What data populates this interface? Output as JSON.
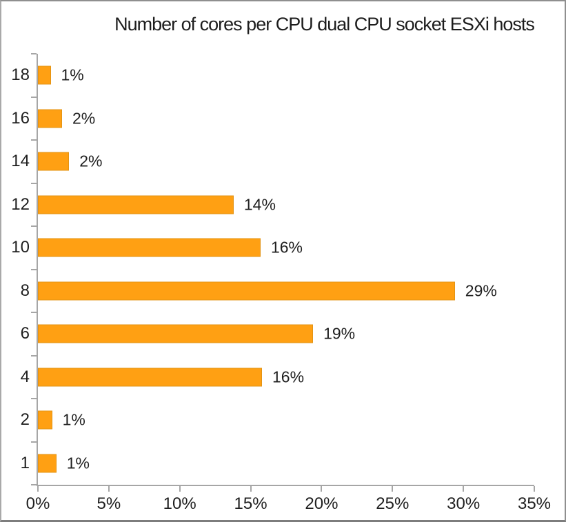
{
  "title": "Number of cores per CPU dual CPU socket ESXi hosts",
  "chart_data": {
    "type": "bar",
    "orientation": "horizontal",
    "title": "Number of cores per CPU dual CPU socket ESXi hosts",
    "categories": [
      "18",
      "16",
      "14",
      "12",
      "10",
      "8",
      "6",
      "4",
      "2",
      "1"
    ],
    "values": [
      1,
      2,
      2,
      14,
      16,
      29,
      19,
      16,
      1,
      1
    ],
    "values_precise": [
      0.9,
      1.7,
      2.2,
      13.8,
      15.7,
      29.4,
      19.4,
      15.8,
      1.0,
      1.3
    ],
    "data_labels": [
      "1%",
      "2%",
      "2%",
      "14%",
      "16%",
      "29%",
      "19%",
      "16%",
      "1%",
      "1%"
    ],
    "xlabel": "",
    "ylabel": "",
    "xlim": [
      0,
      35
    ],
    "x_tick_values": [
      0,
      5,
      10,
      15,
      20,
      25,
      30,
      35
    ],
    "x_tick_labels": [
      "0%",
      "5%",
      "10%",
      "15%",
      "20%",
      "25%",
      "30%",
      "35%"
    ],
    "grid": false,
    "legend": false,
    "colors": {
      "bar_fill": "#FFA013",
      "bar_border": "#E39313",
      "axis": "#A6A6A6",
      "text": "#1F1F1F",
      "background": "#FFFFFF",
      "frame_border": "#8F8F8F"
    }
  }
}
